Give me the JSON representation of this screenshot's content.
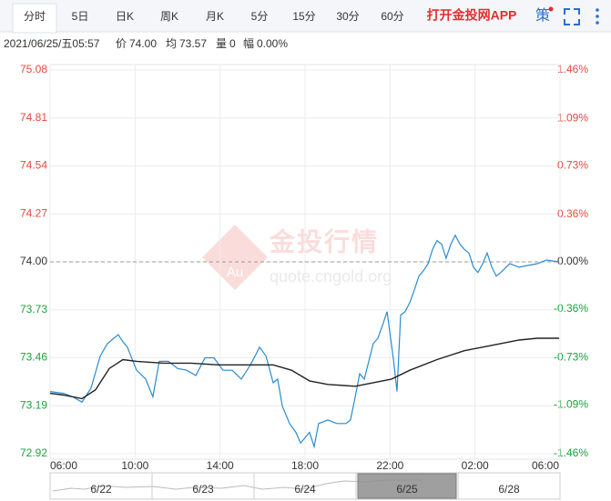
{
  "toolbar": {
    "tabs": [
      "分时",
      "5日",
      "日K",
      "周K",
      "月K",
      "5分",
      "15分",
      "30分",
      "60分"
    ],
    "app_link": "打开金投网APP",
    "strategy": "策"
  },
  "info": {
    "datetime": "2021/06/25/五05:57",
    "price_label": "价",
    "price": "74.00",
    "avg_label": "均",
    "avg": "73.57",
    "volume_label": "量",
    "volume": "0",
    "range_label": "幅",
    "range": "0.00%"
  },
  "watermark": {
    "brand": "金投行情",
    "url": "quote.cngold.org",
    "logo": "Au"
  },
  "chart_data": {
    "type": "line",
    "xlim": [
      0,
      24
    ],
    "xticks": [
      {
        "value": 0,
        "label": "06:00"
      },
      {
        "value": 4,
        "label": "10:00"
      },
      {
        "value": 8,
        "label": "14:00"
      },
      {
        "value": 12,
        "label": "18:00"
      },
      {
        "value": 16,
        "label": "22:00"
      },
      {
        "value": 20,
        "label": "02:00"
      },
      {
        "value": 24,
        "label": "06:00"
      }
    ],
    "ylim": [
      72.92,
      75.08
    ],
    "yticks": [
      75.08,
      74.81,
      74.54,
      74.27,
      {
        "value": 74,
        "label": "74.00"
      },
      73.73,
      73.46,
      73.19,
      72.92
    ],
    "y2lim": [
      -1.46,
      1.46
    ],
    "y2ticks": [
      {
        "value": 1.46,
        "label": "1.46%"
      },
      {
        "value": 1.09,
        "label": "1.09%"
      },
      {
        "value": 0.73,
        "label": "0.73%"
      },
      {
        "value": 0.36,
        "label": "0.36%"
      },
      {
        "value": 0,
        "label": "0.00%"
      },
      {
        "value": -0.36,
        "label": "-0.36%"
      },
      {
        "value": -0.73,
        "label": "-0.73%"
      },
      {
        "value": -1.09,
        "label": "-1.09%"
      },
      {
        "value": -1.46,
        "label": "-1.46%"
      }
    ],
    "baseline": 74,
    "grid": true,
    "up_color": "#e8483c",
    "down_color": "#1aa33a",
    "flat_color": "#333333",
    "series": [
      {
        "name": "价",
        "color": "#2a8ccf",
        "x": [
          0,
          0.64,
          1.07,
          1.5,
          1.93,
          2.36,
          2.7,
          3.0,
          3.21,
          3.43,
          3.64,
          4.07,
          4.5,
          4.84,
          5.14,
          5.57,
          6.0,
          6.43,
          6.86,
          7.29,
          7.71,
          8.14,
          8.57,
          9.0,
          9.43,
          9.86,
          10.16,
          10.5,
          10.71,
          10.93,
          11.27,
          11.57,
          11.79,
          12.21,
          12.43,
          12.64,
          13.07,
          13.5,
          13.93,
          14.14,
          14.36,
          14.57,
          14.79,
          15.0,
          15.21,
          15.43,
          15.64,
          15.86,
          16.16,
          16.33,
          16.5,
          16.71,
          16.93,
          17.14,
          17.36,
          17.57,
          17.79,
          18.0,
          18.21,
          18.43,
          18.64,
          18.86,
          19.07,
          19.29,
          19.5,
          19.71,
          19.93,
          20.14,
          20.36,
          20.57,
          20.79,
          21.0,
          21.21,
          21.64,
          22.07,
          22.5,
          22.93,
          23.36,
          23.96
        ],
        "values": [
          73.27,
          73.26,
          73.24,
          73.21,
          73.29,
          73.47,
          73.54,
          73.57,
          73.59,
          73.55,
          73.52,
          73.39,
          73.34,
          73.24,
          73.44,
          73.44,
          73.4,
          73.39,
          73.36,
          73.46,
          73.46,
          73.39,
          73.39,
          73.34,
          73.42,
          73.52,
          73.47,
          73.32,
          73.34,
          73.19,
          73.09,
          73.04,
          72.98,
          73.04,
          72.96,
          73.09,
          73.11,
          73.09,
          73.09,
          73.11,
          73.24,
          73.37,
          73.34,
          73.44,
          73.54,
          73.57,
          73.64,
          73.72,
          73.45,
          73.27,
          73.7,
          73.72,
          73.77,
          73.84,
          73.92,
          73.95,
          73.99,
          74.07,
          74.12,
          74.1,
          74.02,
          74.1,
          74.15,
          74.1,
          74.07,
          74.05,
          73.97,
          73.94,
          73.99,
          74.05,
          73.97,
          73.92,
          73.94,
          73.99,
          73.97,
          73.98,
          73.99,
          74.01,
          74.0
        ]
      },
      {
        "name": "均",
        "color": "#222222",
        "x": [
          0,
          0.64,
          1.5,
          2.14,
          2.79,
          3.43,
          4.07,
          5.36,
          6.64,
          7.93,
          9.21,
          10.5,
          11.36,
          12.21,
          13.07,
          14.36,
          15.21,
          16.07,
          16.93,
          18.21,
          19.5,
          20.79,
          22.07,
          22.93,
          23.96
        ],
        "values": [
          73.26,
          73.25,
          73.23,
          73.28,
          73.4,
          73.45,
          73.44,
          73.43,
          73.43,
          73.42,
          73.42,
          73.42,
          73.39,
          73.33,
          73.31,
          73.3,
          73.32,
          73.34,
          73.39,
          73.45,
          73.5,
          73.53,
          73.56,
          73.57,
          73.57
        ]
      }
    ]
  },
  "navigator": {
    "dates": [
      "6/22",
      "6/23",
      "6/24",
      "6/25",
      "6/28"
    ],
    "selected": 3
  }
}
